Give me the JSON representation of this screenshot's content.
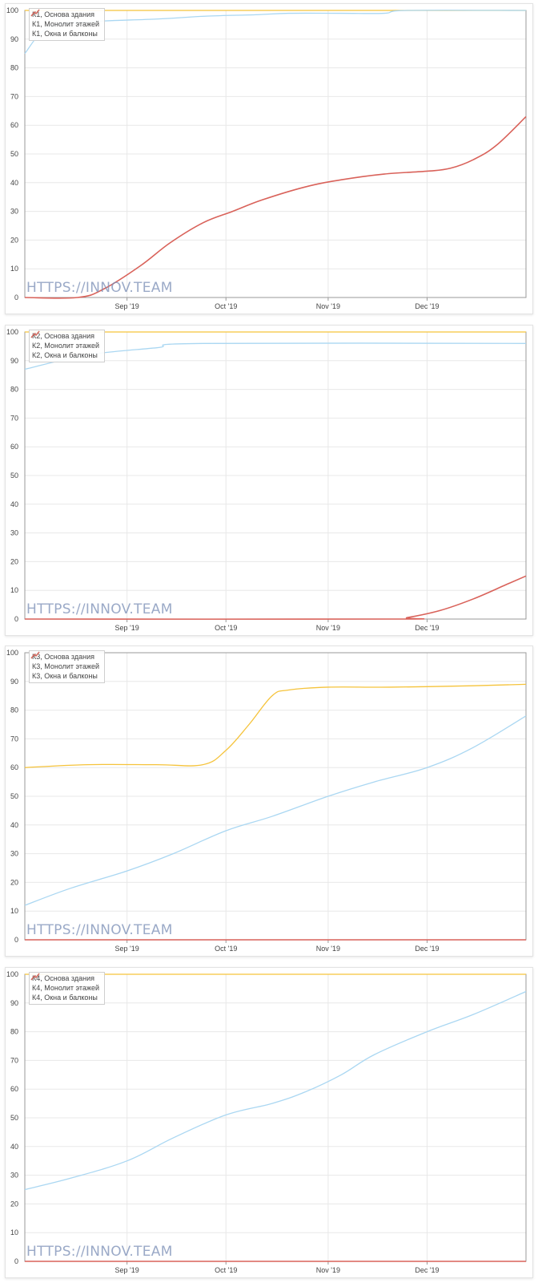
{
  "watermark": "HTTPS://INNOV.TEAM",
  "colors": {
    "foundation": "#f5c33b",
    "monolith": "#aad7f2",
    "windows": "#d9625a",
    "grid": "#e8e8e8",
    "axis": "#999999"
  },
  "chart_data": [
    {
      "type": "line",
      "title": "",
      "xlabel": "",
      "ylabel": "",
      "ylim": [
        0,
        100
      ],
      "xlim": [
        "2019-08-01",
        "2019-12-31"
      ],
      "yticks": [
        "0",
        "10",
        "20",
        "30",
        "40",
        "50",
        "60",
        "70",
        "80",
        "90",
        "100"
      ],
      "xticks": [
        {
          "date": "2019-09-01",
          "label": "Sep '19"
        },
        {
          "date": "2019-10-01",
          "label": "Oct '19"
        },
        {
          "date": "2019-11-01",
          "label": "Nov '19"
        },
        {
          "date": "2019-12-01",
          "label": "Dec '19"
        }
      ],
      "grid": true,
      "legend": "top-left",
      "series": [
        {
          "name": "К1, Основа здания",
          "color": "#f5c33b",
          "points": [
            [
              "2019-08-01",
              100
            ],
            [
              "2019-12-31",
              100
            ]
          ]
        },
        {
          "name": "К1, Монолит этажей",
          "color": "#aad7f2",
          "points": [
            [
              "2019-08-01",
              85
            ],
            [
              "2019-08-08",
              94
            ],
            [
              "2019-08-20",
              96
            ],
            [
              "2019-09-10",
              97
            ],
            [
              "2019-09-25",
              98
            ],
            [
              "2019-10-10",
              98.5
            ],
            [
              "2019-10-20",
              99
            ],
            [
              "2019-11-05",
              99
            ],
            [
              "2019-11-18",
              99
            ],
            [
              "2019-11-25",
              100
            ],
            [
              "2019-12-31",
              100
            ]
          ]
        },
        {
          "name": "К1, Окна и балконы",
          "color": "#d9625a",
          "points": [
            [
              "2019-08-01",
              0
            ],
            [
              "2019-08-17",
              0
            ],
            [
              "2019-08-25",
              3
            ],
            [
              "2019-09-05",
              11
            ],
            [
              "2019-09-14",
              19
            ],
            [
              "2019-09-24",
              26
            ],
            [
              "2019-10-03",
              30
            ],
            [
              "2019-10-12",
              34
            ],
            [
              "2019-10-25",
              38.5
            ],
            [
              "2019-11-05",
              41
            ],
            [
              "2019-11-18",
              43
            ],
            [
              "2019-12-01",
              44
            ],
            [
              "2019-12-08",
              45
            ],
            [
              "2019-12-15",
              48
            ],
            [
              "2019-12-22",
              53
            ],
            [
              "2019-12-31",
              63
            ]
          ]
        }
      ]
    },
    {
      "type": "line",
      "title": "",
      "xlabel": "",
      "ylabel": "",
      "ylim": [
        0,
        100
      ],
      "xlim": [
        "2019-08-01",
        "2019-12-31"
      ],
      "yticks": [
        "0",
        "10",
        "20",
        "30",
        "40",
        "50",
        "60",
        "70",
        "80",
        "90",
        "100"
      ],
      "xticks": [
        {
          "date": "2019-09-01",
          "label": "Sep '19"
        },
        {
          "date": "2019-10-01",
          "label": "Oct '19"
        },
        {
          "date": "2019-11-01",
          "label": "Nov '19"
        },
        {
          "date": "2019-12-01",
          "label": "Dec '19"
        }
      ],
      "grid": true,
      "legend": "top-left",
      "series": [
        {
          "name": "К2, Основа здания",
          "color": "#f5c33b",
          "points": [
            [
              "2019-08-01",
              100
            ],
            [
              "2019-12-31",
              100
            ]
          ]
        },
        {
          "name": "К2, Монолит этажей",
          "color": "#aad7f2",
          "points": [
            [
              "2019-08-01",
              87
            ],
            [
              "2019-08-20",
              92
            ],
            [
              "2019-09-10",
              94.5
            ],
            [
              "2019-09-24",
              96
            ],
            [
              "2019-12-31",
              96
            ]
          ]
        },
        {
          "name": "К2, Окна и балконы",
          "color": "#d9625a",
          "points": [
            [
              "2019-08-01",
              0
            ],
            [
              "2019-11-20",
              0
            ],
            [
              "2019-11-25",
              0.5
            ],
            [
              "2019-12-05",
              3
            ],
            [
              "2019-12-15",
              7
            ],
            [
              "2019-12-25",
              12
            ],
            [
              "2019-12-31",
              15
            ]
          ]
        }
      ]
    },
    {
      "type": "line",
      "title": "",
      "xlabel": "",
      "ylabel": "",
      "ylim": [
        0,
        100
      ],
      "xlim": [
        "2019-08-01",
        "2019-12-31"
      ],
      "yticks": [
        "0",
        "10",
        "20",
        "30",
        "40",
        "50",
        "60",
        "70",
        "80",
        "90",
        "100"
      ],
      "xticks": [
        {
          "date": "2019-09-01",
          "label": "Sep '19"
        },
        {
          "date": "2019-10-01",
          "label": "Oct '19"
        },
        {
          "date": "2019-11-01",
          "label": "Nov '19"
        },
        {
          "date": "2019-12-01",
          "label": "Dec '19"
        }
      ],
      "grid": true,
      "legend": "top-left",
      "series": [
        {
          "name": "К3, Основа здания",
          "color": "#f5c33b",
          "points": [
            [
              "2019-08-01",
              60
            ],
            [
              "2019-08-20",
              61
            ],
            [
              "2019-09-10",
              61
            ],
            [
              "2019-09-24",
              61
            ],
            [
              "2019-10-01",
              66
            ],
            [
              "2019-10-08",
              75
            ],
            [
              "2019-10-15",
              85
            ],
            [
              "2019-10-20",
              87
            ],
            [
              "2019-11-01",
              88
            ],
            [
              "2019-11-20",
              88
            ],
            [
              "2019-12-15",
              88.5
            ],
            [
              "2019-12-31",
              89
            ]
          ]
        },
        {
          "name": "К3, Монолит этажей",
          "color": "#aad7f2",
          "points": [
            [
              "2019-08-01",
              12
            ],
            [
              "2019-08-15",
              18
            ],
            [
              "2019-09-01",
              24
            ],
            [
              "2019-09-15",
              30
            ],
            [
              "2019-10-01",
              38
            ],
            [
              "2019-10-15",
              43
            ],
            [
              "2019-11-01",
              50
            ],
            [
              "2019-11-15",
              55
            ],
            [
              "2019-12-01",
              60
            ],
            [
              "2019-12-15",
              67
            ],
            [
              "2019-12-31",
              78
            ]
          ]
        },
        {
          "name": "К3, Окна и балконы",
          "color": "#d9625a",
          "points": [
            [
              "2019-08-01",
              0
            ],
            [
              "2019-12-31",
              0
            ]
          ]
        }
      ]
    },
    {
      "type": "line",
      "title": "",
      "xlabel": "",
      "ylabel": "",
      "ylim": [
        0,
        100
      ],
      "xlim": [
        "2019-08-01",
        "2019-12-31"
      ],
      "yticks": [
        "0",
        "10",
        "20",
        "30",
        "40",
        "50",
        "60",
        "70",
        "80",
        "90",
        "100"
      ],
      "xticks": [
        {
          "date": "2019-09-01",
          "label": "Sep '19"
        },
        {
          "date": "2019-10-01",
          "label": "Oct '19"
        },
        {
          "date": "2019-11-01",
          "label": "Nov '19"
        },
        {
          "date": "2019-12-01",
          "label": "Dec '19"
        }
      ],
      "grid": true,
      "legend": "top-left",
      "series": [
        {
          "name": "К4, Основа здания",
          "color": "#f5c33b",
          "points": [
            [
              "2019-08-01",
              100
            ],
            [
              "2019-12-31",
              100
            ]
          ]
        },
        {
          "name": "К4, Монолит этажей",
          "color": "#aad7f2",
          "points": [
            [
              "2019-08-01",
              25
            ],
            [
              "2019-08-15",
              29
            ],
            [
              "2019-09-01",
              35
            ],
            [
              "2019-09-15",
              43
            ],
            [
              "2019-10-01",
              51
            ],
            [
              "2019-10-15",
              55
            ],
            [
              "2019-10-25",
              59
            ],
            [
              "2019-11-05",
              65
            ],
            [
              "2019-11-15",
              72
            ],
            [
              "2019-12-01",
              80
            ],
            [
              "2019-12-15",
              86
            ],
            [
              "2019-12-31",
              94
            ]
          ]
        },
        {
          "name": "К4, Окна и балконы",
          "color": "#d9625a",
          "points": [
            [
              "2019-08-01",
              0
            ],
            [
              "2019-12-31",
              0
            ]
          ]
        }
      ]
    }
  ]
}
